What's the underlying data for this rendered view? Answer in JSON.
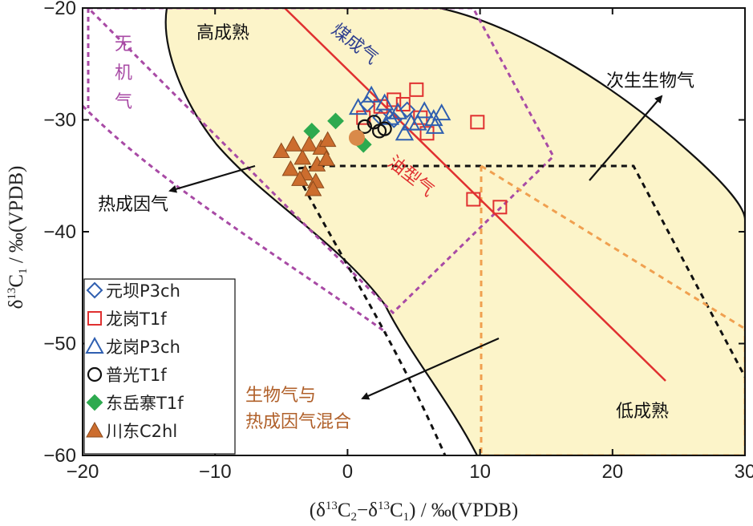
{
  "chart_data": {
    "type": "scatter",
    "xlabel": "(δ13C2−δ13C1) / ‰(VPDB)",
    "ylabel": "δ13C1 / ‰(VPDB)",
    "xlim": [
      -20,
      30
    ],
    "ylim": [
      -60,
      -20
    ],
    "xticks": [
      {
        "v": -20,
        "label": "−20"
      },
      {
        "v": -10,
        "label": "−10"
      },
      {
        "v": 0,
        "label": "0"
      },
      {
        "v": 10,
        "label": "10"
      },
      {
        "v": 20,
        "label": "20"
      },
      {
        "v": 30,
        "label": "30"
      }
    ],
    "yticks": [
      {
        "v": -20,
        "label": "−20"
      },
      {
        "v": -30,
        "label": "−30"
      },
      {
        "v": -40,
        "label": "−40"
      },
      {
        "v": -50,
        "label": "−50"
      },
      {
        "v": -60,
        "label": "−60"
      }
    ],
    "grid": false,
    "legend_position": "bottom-left",
    "region_labels": {
      "high_maturity": "高成熟",
      "coal_gas": "煤成气",
      "inorganic_gas": "无机气",
      "secondary_biogas": "次生生物气",
      "thermal_gas": "热成因气",
      "oil_gas": "油型气",
      "biogas_mixed_line1": "生物气与",
      "biogas_mixed_line2": "热成因气混合",
      "low_maturity": "低成熟"
    },
    "series": [
      {
        "name": "元坝P3ch",
        "marker": "diamond",
        "color": "#2f5fb0",
        "points": [
          [
            1.5,
            -28.6
          ],
          [
            2.5,
            -29.8
          ],
          [
            3.5,
            -30.0
          ],
          [
            4.5,
            -29.1
          ]
        ]
      },
      {
        "name": "龙岗T1f",
        "marker": "square",
        "color": "#e03030",
        "points": [
          [
            1.2,
            -29.8
          ],
          [
            2.5,
            -28.8
          ],
          [
            3.5,
            -28.2
          ],
          [
            4.2,
            -28.6
          ],
          [
            5.2,
            -27.3
          ],
          [
            5.5,
            -29.8
          ],
          [
            6.0,
            -31.2
          ],
          [
            9.8,
            -30.2
          ],
          [
            9.5,
            -37.1
          ],
          [
            11.5,
            -37.8
          ]
        ]
      },
      {
        "name": "龙岗P3ch",
        "marker": "triangle",
        "color": "#2f5fb0",
        "points": [
          [
            0.8,
            -28.9
          ],
          [
            1.8,
            -27.8
          ],
          [
            2.8,
            -28.5
          ],
          [
            3.2,
            -29.8
          ],
          [
            3.8,
            -29.3
          ],
          [
            4.3,
            -31.2
          ],
          [
            4.8,
            -30.3
          ],
          [
            5.3,
            -30.3
          ],
          [
            5.8,
            -29.2
          ],
          [
            6.5,
            -29.9
          ],
          [
            7.1,
            -29.4
          ],
          [
            6.6,
            -30.6
          ]
        ]
      },
      {
        "name": "普光T1f",
        "marker": "circle",
        "color": "#111111",
        "points": [
          [
            1.3,
            -30.6
          ],
          [
            2.0,
            -30.2
          ],
          [
            2.4,
            -31.0
          ],
          [
            2.8,
            -30.8
          ]
        ]
      },
      {
        "name": "东岳寨T1f",
        "marker": "filled-diamond",
        "color": "#2daa4f",
        "points": [
          [
            -2.7,
            -31.0
          ],
          [
            -0.9,
            -30.1
          ],
          [
            1.2,
            -32.2
          ]
        ]
      },
      {
        "name": "川东C2hl",
        "marker": "filled-triangle",
        "color": "#cc6d2e",
        "points": [
          [
            -5.0,
            -32.8
          ],
          [
            -4.1,
            -32.2
          ],
          [
            -3.4,
            -33.4
          ],
          [
            -2.9,
            -32.2
          ],
          [
            -2.0,
            -32.5
          ],
          [
            -1.5,
            -31.8
          ],
          [
            -4.3,
            -34.4
          ],
          [
            -3.2,
            -34.8
          ],
          [
            -2.3,
            -34.0
          ],
          [
            -1.6,
            -33.5
          ],
          [
            -3.6,
            -35.3
          ],
          [
            -2.4,
            -35.5
          ],
          [
            -2.6,
            -36.2
          ]
        ]
      },
      {
        "name": "",
        "marker": "filled-circle",
        "color": "#d98a4a",
        "points": [
          [
            0.7,
            -31.6
          ]
        ]
      }
    ]
  },
  "legend": [
    {
      "marker": "diamond",
      "color": "#2f5fb0",
      "label": "元坝P3ch"
    },
    {
      "marker": "square",
      "color": "#e03030",
      "label": "龙岗T1f"
    },
    {
      "marker": "triangle",
      "color": "#2f5fb0",
      "label": "龙岗P3ch"
    },
    {
      "marker": "circle",
      "color": "#111111",
      "label": "普光T1f"
    },
    {
      "marker": "filled-diamond",
      "color": "#2daa4f",
      "label": "东岳寨T1f"
    },
    {
      "marker": "filled-triangle",
      "color": "#cc6d2e",
      "label": "川东C2hl"
    }
  ],
  "colors": {
    "region_fill": "#fcf4c9",
    "boundary": "#111111",
    "red_line": "#e03030",
    "purple_dash": "#a84aa5",
    "orange_dash": "#f0a050",
    "coal_label": "#2f3f8f",
    "oil_label": "#e03030",
    "mixed_label": "#b0602a",
    "inorganic_label": "#a84aa5"
  }
}
